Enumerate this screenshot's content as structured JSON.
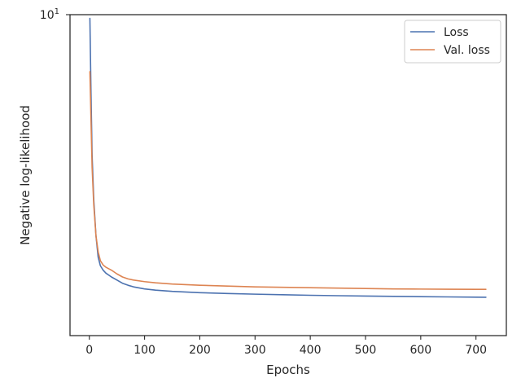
{
  "chart_data": {
    "type": "line",
    "title": "",
    "xlabel": "Epochs",
    "ylabel": "Negative log-likelihood",
    "xlim": [
      -35,
      755
    ],
    "ylim": [
      1.7,
      10.0
    ],
    "yscale": "log",
    "x_ticks": [
      0,
      100,
      200,
      300,
      400,
      500,
      600,
      700
    ],
    "y_ticks": [
      {
        "value": 10,
        "base": "10",
        "exp": "1"
      }
    ],
    "grid": false,
    "legend_position": "top-right",
    "series": [
      {
        "name": "Loss",
        "color": "#4c72b0",
        "x": [
          1,
          3,
          5,
          8,
          12,
          16,
          20,
          25,
          30,
          40,
          50,
          60,
          70,
          80,
          100,
          120,
          150,
          200,
          250,
          300,
          350,
          400,
          450,
          500,
          550,
          600,
          650,
          700,
          718
        ],
        "y": [
          9.8,
          6.5,
          4.6,
          3.6,
          2.95,
          2.62,
          2.5,
          2.44,
          2.4,
          2.35,
          2.31,
          2.27,
          2.245,
          2.225,
          2.2,
          2.185,
          2.17,
          2.155,
          2.145,
          2.137,
          2.13,
          2.124,
          2.119,
          2.115,
          2.111,
          2.108,
          2.105,
          2.102,
          2.101
        ]
      },
      {
        "name": "Val. loss",
        "color": "#dd8452",
        "x": [
          1,
          3,
          5,
          8,
          12,
          16,
          20,
          25,
          30,
          40,
          50,
          60,
          70,
          80,
          100,
          120,
          150,
          200,
          250,
          300,
          350,
          400,
          450,
          500,
          550,
          600,
          650,
          700,
          718
        ],
        "y": [
          7.3,
          5.6,
          4.3,
          3.5,
          2.95,
          2.7,
          2.57,
          2.51,
          2.48,
          2.44,
          2.39,
          2.35,
          2.325,
          2.31,
          2.29,
          2.275,
          2.26,
          2.245,
          2.235,
          2.225,
          2.22,
          2.215,
          2.21,
          2.205,
          2.2,
          2.198,
          2.196,
          2.195,
          2.195
        ]
      }
    ]
  }
}
